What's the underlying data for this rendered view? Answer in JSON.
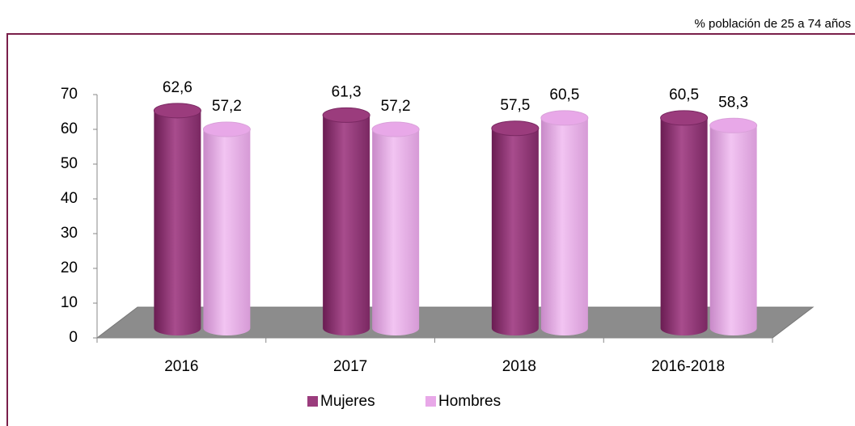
{
  "chart_data": {
    "type": "bar",
    "subtitle": "% población de 25 a 74 años",
    "categories": [
      "2016",
      "2017",
      "2018",
      "2016-2018"
    ],
    "series": [
      {
        "name": "Mujeres",
        "color": "#9b3c7d",
        "values": [
          62.6,
          61.3,
          57.5,
          60.5
        ],
        "value_labels": [
          "62,6",
          "61,3",
          "57,5",
          "60,5"
        ]
      },
      {
        "name": "Hombres",
        "color": "#e8a8e8",
        "values": [
          57.2,
          57.2,
          60.5,
          58.3
        ],
        "value_labels": [
          "57,2",
          "57,2",
          "60,5",
          "58,3"
        ]
      }
    ],
    "ylim": [
      0,
      70
    ],
    "yticks": [
      0,
      10,
      20,
      30,
      40,
      50,
      60,
      70
    ],
    "legend": "bottom"
  }
}
